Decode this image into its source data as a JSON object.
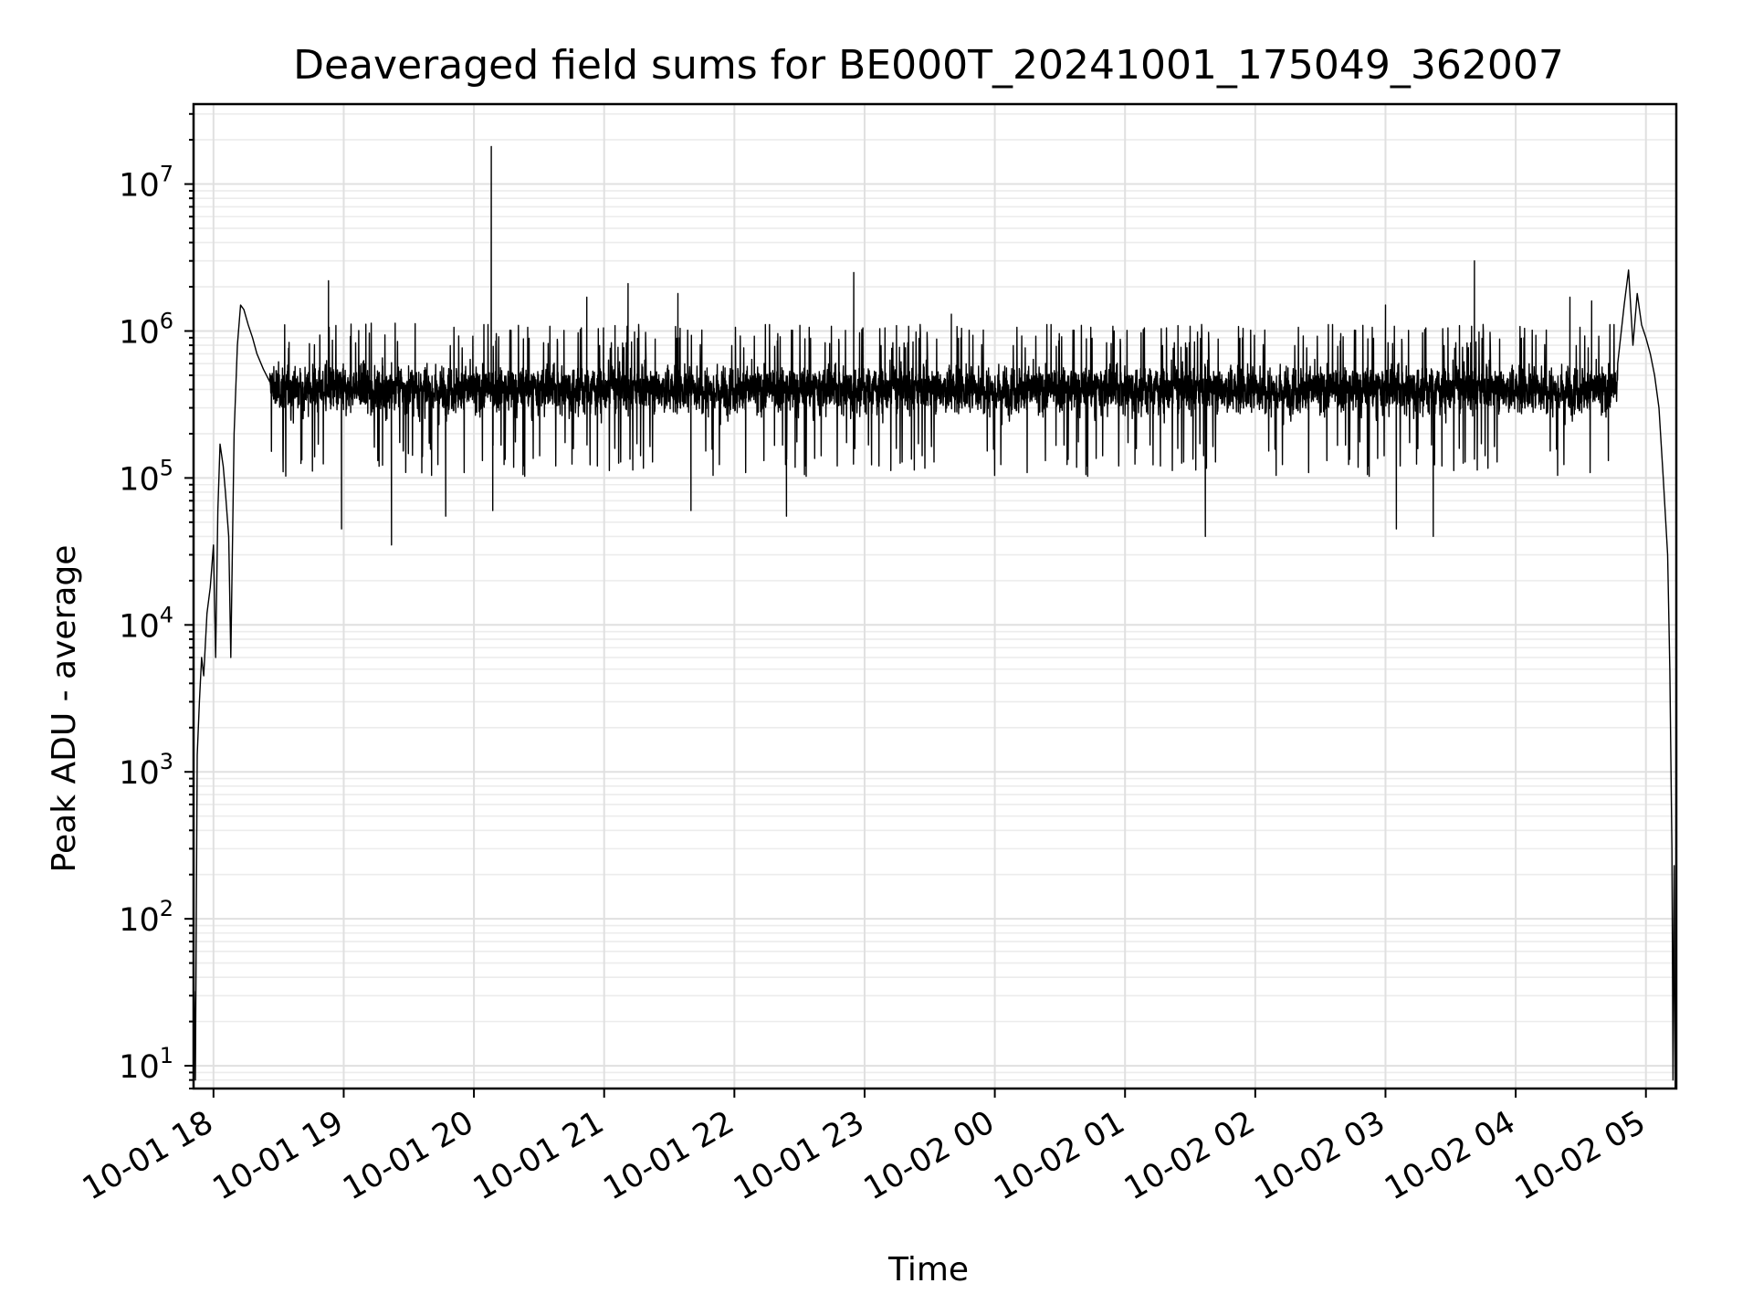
{
  "chart_data": {
    "type": "line",
    "title": "Deaveraged field sums for BE000T_20241001_175049_362007",
    "xlabel": "Time",
    "ylabel": "Peak ADU - average",
    "x_axis": {
      "scale": "time",
      "range": [
        "2024-10-01 17:50:49",
        "2024-10-02 05:14:00"
      ],
      "tick_values": [
        "2024-10-01 18:00",
        "2024-10-01 19:00",
        "2024-10-01 20:00",
        "2024-10-01 21:00",
        "2024-10-01 22:00",
        "2024-10-01 23:00",
        "2024-10-02 00:00",
        "2024-10-02 01:00",
        "2024-10-02 02:00",
        "2024-10-02 03:00",
        "2024-10-02 04:00",
        "2024-10-02 05:00"
      ],
      "tick_labels": [
        "10-01 18",
        "10-01 19",
        "10-01 20",
        "10-01 21",
        "10-01 22",
        "10-01 23",
        "10-02 00",
        "10-02 01",
        "10-02 02",
        "10-02 03",
        "10-02 04",
        "10-02 05"
      ]
    },
    "y_axis": {
      "scale": "log",
      "range": [
        7,
        35000000
      ],
      "tick_values": [
        10,
        100,
        1000,
        10000,
        100000,
        1000000,
        10000000
      ],
      "tick_labels": [
        {
          "base": "10",
          "exp": "1"
        },
        {
          "base": "10",
          "exp": "2"
        },
        {
          "base": "10",
          "exp": "3"
        },
        {
          "base": "10",
          "exp": "4"
        },
        {
          "base": "10",
          "exp": "5"
        },
        {
          "base": "10",
          "exp": "6"
        },
        {
          "base": "10",
          "exp": "7"
        }
      ]
    },
    "grid": true,
    "minor_grid": true,
    "series": [
      {
        "name": "",
        "color": "#000000",
        "points": [
          [
            "2024-10-01 17:50:49",
            7
          ],
          [
            "2024-10-01 17:51:10",
            32
          ],
          [
            "2024-10-01 17:51:40",
            8
          ],
          [
            "2024-10-01 17:52:30",
            1300
          ],
          [
            "2024-10-01 17:53:30",
            3000
          ],
          [
            "2024-10-01 17:54:30",
            6000
          ],
          [
            "2024-10-01 17:55:30",
            4500
          ],
          [
            "2024-10-01 17:57:00",
            12000
          ],
          [
            "2024-10-01 17:58:30",
            18000
          ],
          [
            "2024-10-01 18:00:00",
            35000
          ],
          [
            "2024-10-01 18:01:00",
            6000
          ],
          [
            "2024-10-01 18:02:00",
            60000
          ],
          [
            "2024-10-01 18:03:00",
            170000
          ],
          [
            "2024-10-01 18:04:30",
            120000
          ],
          [
            "2024-10-01 18:05:30",
            80000
          ],
          [
            "2024-10-01 18:07:00",
            40000
          ],
          [
            "2024-10-01 18:08:00",
            6000
          ],
          [
            "2024-10-01 18:09:30",
            200000
          ],
          [
            "2024-10-01 18:11:00",
            800000
          ],
          [
            "2024-10-01 18:12:30",
            1500000
          ],
          [
            "2024-10-01 18:14:00",
            1400000
          ],
          [
            "2024-10-01 18:16:00",
            1100000
          ],
          [
            "2024-10-01 18:18:00",
            900000
          ],
          [
            "2024-10-01 18:20:00",
            700000
          ],
          [
            "2024-10-01 18:23:00",
            550000
          ],
          [
            "2024-10-01 18:26:00",
            450000
          ]
        ],
        "noisy_segment": {
          "range": [
            "2024-10-01 18:26:00",
            "2024-10-02 04:47:00"
          ],
          "typical_value": 400000,
          "typical_low": 150000,
          "typical_high": 800000,
          "notable_spikes": [
            [
              "2024-10-01 18:53:00",
              2200000
            ],
            [
              "2024-10-01 18:59:00",
              45000
            ],
            [
              "2024-10-01 19:22:00",
              35000
            ],
            [
              "2024-10-01 19:47:00",
              55000
            ],
            [
              "2024-10-01 20:08:00",
              18000000
            ],
            [
              "2024-10-01 20:08:40",
              60000
            ],
            [
              "2024-10-01 20:52:00",
              1700000
            ],
            [
              "2024-10-01 21:11:00",
              2100000
            ],
            [
              "2024-10-01 21:34:00",
              1800000
            ],
            [
              "2024-10-01 21:40:00",
              60000
            ],
            [
              "2024-10-01 22:24:00",
              55000
            ],
            [
              "2024-10-01 22:55:00",
              2500000
            ],
            [
              "2024-10-01 23:40:00",
              1300000
            ],
            [
              "2024-10-02 00:55:00",
              1000000
            ],
            [
              "2024-10-02 01:37:00",
              40000
            ],
            [
              "2024-10-02 03:00:00",
              1500000
            ],
            [
              "2024-10-02 03:05:00",
              45000
            ],
            [
              "2024-10-02 03:22:00",
              40000
            ],
            [
              "2024-10-02 03:41:00",
              3000000
            ],
            [
              "2024-10-02 04:25:00",
              1700000
            ],
            [
              "2024-10-02 04:35:00",
              1600000
            ]
          ]
        },
        "tail_points": [
          [
            "2024-10-02 04:47:00",
            600000
          ],
          [
            "2024-10-02 04:50:00",
            1500000
          ],
          [
            "2024-10-02 04:52:00",
            2600000
          ],
          [
            "2024-10-02 04:54:00",
            800000
          ],
          [
            "2024-10-02 04:56:00",
            1800000
          ],
          [
            "2024-10-02 04:58:00",
            1100000
          ],
          [
            "2024-10-02 05:00:00",
            900000
          ],
          [
            "2024-10-02 05:02:00",
            700000
          ],
          [
            "2024-10-02 05:04:00",
            500000
          ],
          [
            "2024-10-02 05:06:00",
            300000
          ],
          [
            "2024-10-02 05:08:00",
            100000
          ],
          [
            "2024-10-02 05:10:00",
            30000
          ],
          [
            "2024-10-02 05:11:00",
            5000
          ],
          [
            "2024-10-02 05:12:00",
            300
          ],
          [
            "2024-10-02 05:12:30",
            8
          ],
          [
            "2024-10-02 05:13:00",
            230
          ],
          [
            "2024-10-02 05:13:30",
            7
          ],
          [
            "2024-10-02 05:14:00",
            14
          ]
        ]
      }
    ]
  }
}
